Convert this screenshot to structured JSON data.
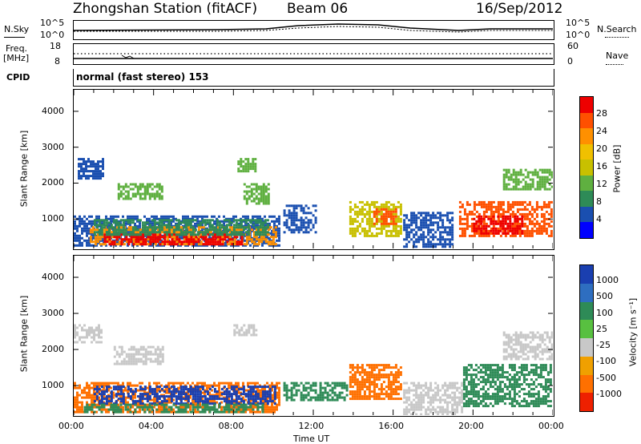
{
  "header": {
    "station": "Zhongshan Station (fitACF)",
    "beam": "Beam 06",
    "date": "16/Sep/2012"
  },
  "nsky_panel": {
    "left_label": "N.Sky",
    "right_label": "N.Search",
    "left_ticks": [
      "10^5",
      "10^0"
    ],
    "right_ticks": [
      "10^5",
      "10^0"
    ]
  },
  "freq_panel": {
    "left_label_1": "Freq.",
    "left_label_2": "[MHz]",
    "right_label": "Nave",
    "left_ticks": [
      "18",
      "8"
    ],
    "right_ticks": [
      "60",
      "0"
    ]
  },
  "cpid_panel": {
    "label": "CPID",
    "text": "normal (fast stereo) 153"
  },
  "x_axis": {
    "label": "Time UT",
    "ticks": [
      "00:00",
      "04:00",
      "08:00",
      "12:00",
      "16:00",
      "20:00",
      "00:00"
    ]
  },
  "chart_data": [
    {
      "type": "heatmap",
      "name": "power-panel",
      "ylabel": "Slant Range [km]",
      "y_ticks": [
        1000,
        2000,
        3000,
        4000
      ],
      "ylim": [
        180,
        4600
      ],
      "xlim_hours": [
        0,
        24
      ],
      "colorbar": {
        "label": "Power [dB]",
        "ticks": [
          "28",
          "24",
          "20",
          "16",
          "12",
          "8",
          "4"
        ],
        "colors": [
          "#ee0000",
          "#ff5000",
          "#ff9000",
          "#f0c000",
          "#c8c000",
          "#5fb040",
          "#2e8b57",
          "#1a4fb0",
          "#0000ff"
        ]
      },
      "regions": [
        {
          "t0": 0,
          "t1": 10.4,
          "r0": 200,
          "r1": 1100,
          "color": "#1a4fb0"
        },
        {
          "t0": 0.8,
          "t1": 10.2,
          "r0": 250,
          "r1": 800,
          "color": "#ff9000"
        },
        {
          "t0": 1.5,
          "t1": 8.5,
          "r0": 260,
          "r1": 600,
          "color": "#ee0000"
        },
        {
          "t0": 1.0,
          "t1": 9.8,
          "r0": 550,
          "r1": 1000,
          "color": "#2e8b57"
        },
        {
          "t0": 0.2,
          "t1": 1.5,
          "r0": 2100,
          "r1": 2700,
          "color": "#1a4fb0"
        },
        {
          "t0": 2.2,
          "t1": 4.5,
          "r0": 1500,
          "r1": 2000,
          "color": "#5fb040"
        },
        {
          "t0": 8.2,
          "t1": 9.2,
          "r0": 2300,
          "r1": 2700,
          "color": "#5fb040"
        },
        {
          "t0": 8.5,
          "t1": 9.8,
          "r0": 1400,
          "r1": 2000,
          "color": "#5fb040"
        },
        {
          "t0": 10.5,
          "t1": 12.2,
          "r0": 600,
          "r1": 1400,
          "color": "#1a4fb0"
        },
        {
          "t0": 13.8,
          "t1": 16.5,
          "r0": 500,
          "r1": 1500,
          "color": "#c8c000"
        },
        {
          "t0": 15.0,
          "t1": 16.2,
          "r0": 800,
          "r1": 1300,
          "color": "#ff5000"
        },
        {
          "t0": 16.5,
          "t1": 19.0,
          "r0": 200,
          "r1": 1200,
          "color": "#1a4fb0"
        },
        {
          "t0": 19.3,
          "t1": 24.0,
          "r0": 500,
          "r1": 1500,
          "color": "#ff5000"
        },
        {
          "t0": 20.0,
          "t1": 22.5,
          "r0": 550,
          "r1": 1100,
          "color": "#ee0000"
        },
        {
          "t0": 21.5,
          "t1": 24.0,
          "r0": 1800,
          "r1": 2400,
          "color": "#5fb040"
        }
      ]
    },
    {
      "type": "heatmap",
      "name": "velocity-panel",
      "ylabel": "Slant Range [km]",
      "y_ticks": [
        1000,
        2000,
        3000,
        4000
      ],
      "ylim": [
        180,
        4600
      ],
      "xlim_hours": [
        0,
        24
      ],
      "colorbar": {
        "label": "Velocity [m s⁻¹]",
        "ticks": [
          "1000",
          "500",
          "100",
          "25",
          "-25",
          "-100",
          "-500",
          "-1000"
        ],
        "colors": [
          "#1a3fb0",
          "#2e6ec0",
          "#2e8b57",
          "#58c040",
          "#c8c8c8",
          "#f0a000",
          "#ff7000",
          "#ee2000"
        ]
      },
      "regions": [
        {
          "t0": 0,
          "t1": 10.4,
          "r0": 250,
          "r1": 1100,
          "color": "#ff7000"
        },
        {
          "t0": 1.0,
          "t1": 10.2,
          "r0": 500,
          "r1": 1000,
          "color": "#1a3fb0"
        },
        {
          "t0": 0.5,
          "t1": 9.5,
          "r0": 250,
          "r1": 500,
          "color": "#2e8b57"
        },
        {
          "t0": 0.0,
          "t1": 1.5,
          "r0": 2200,
          "r1": 2700,
          "color": "#c8c8c8"
        },
        {
          "t0": 2.0,
          "t1": 4.5,
          "r0": 1600,
          "r1": 2100,
          "color": "#c8c8c8"
        },
        {
          "t0": 8.0,
          "t1": 9.2,
          "r0": 2400,
          "r1": 2700,
          "color": "#c8c8c8"
        },
        {
          "t0": 10.5,
          "t1": 13.8,
          "r0": 600,
          "r1": 1100,
          "color": "#2e8b57"
        },
        {
          "t0": 13.8,
          "t1": 16.5,
          "r0": 600,
          "r1": 1600,
          "color": "#ff7000"
        },
        {
          "t0": 16.5,
          "t1": 19.5,
          "r0": 200,
          "r1": 1100,
          "color": "#c8c8c8"
        },
        {
          "t0": 19.5,
          "t1": 24.0,
          "r0": 400,
          "r1": 1600,
          "color": "#2e8b57"
        },
        {
          "t0": 21.5,
          "t1": 24.0,
          "r0": 1700,
          "r1": 2500,
          "color": "#c8c8c8"
        }
      ]
    }
  ]
}
